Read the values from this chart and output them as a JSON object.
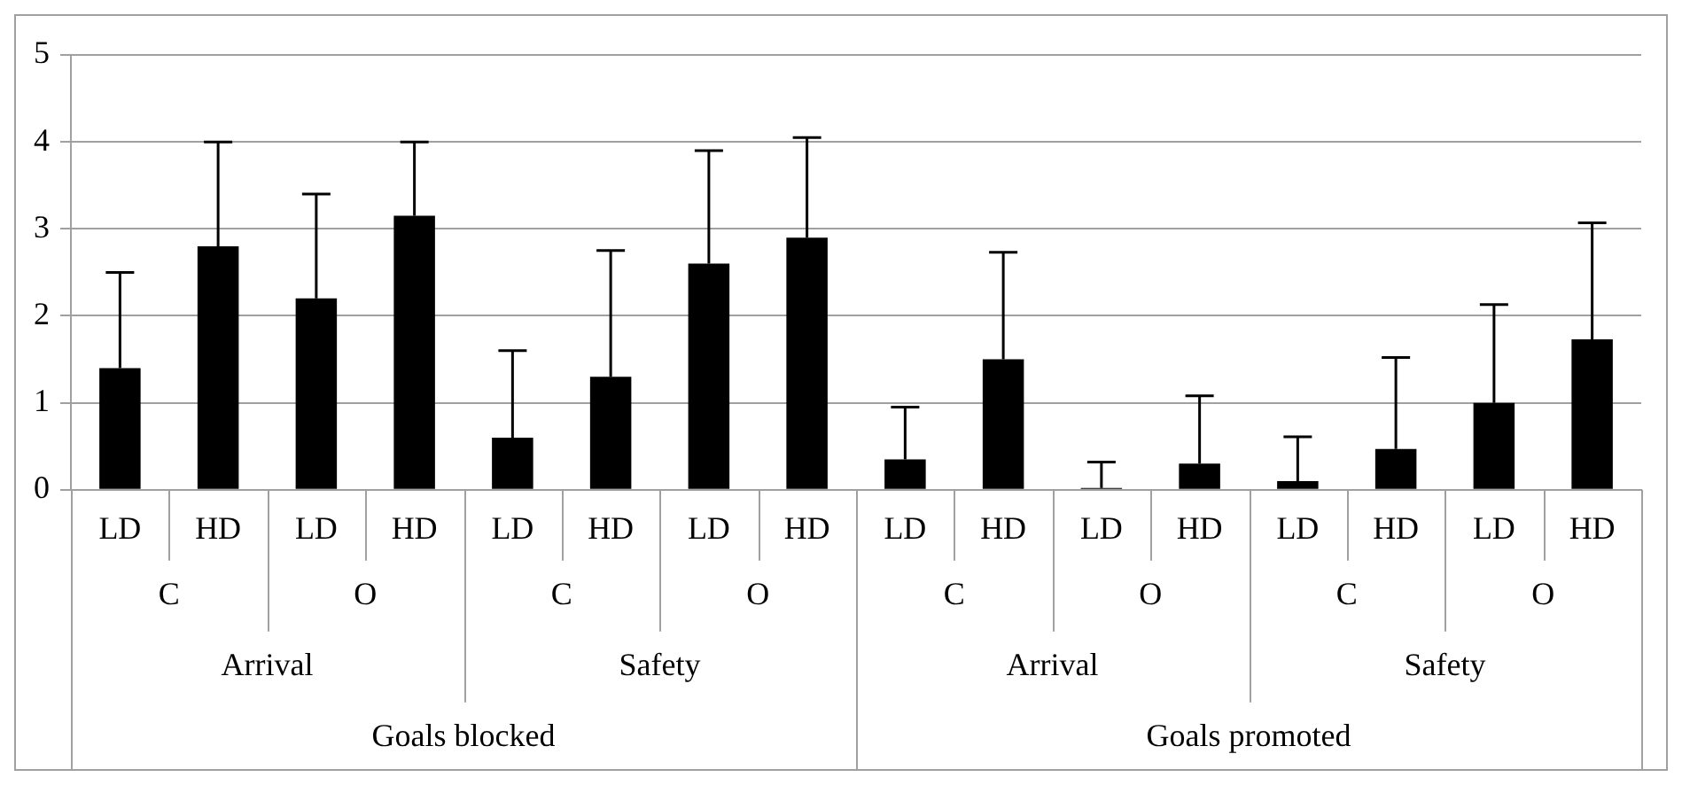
{
  "chart_data": {
    "type": "bar",
    "categories": [
      "LD",
      "HD",
      "LD",
      "HD",
      "LD",
      "HD",
      "LD",
      "HD",
      "LD",
      "HD",
      "LD",
      "HD",
      "LD",
      "HD",
      "LD",
      "HD"
    ],
    "values": [
      1.4,
      2.8,
      2.2,
      3.15,
      0.6,
      1.3,
      2.6,
      2.9,
      0.35,
      1.5,
      0.02,
      0.3,
      0.1,
      0.47,
      1.0,
      1.73
    ],
    "errors": [
      [
        1.4,
        2.5
      ],
      [
        2.8,
        4.0
      ],
      [
        2.2,
        3.4
      ],
      [
        3.15,
        4.0
      ],
      [
        0.6,
        1.6
      ],
      [
        1.3,
        2.75
      ],
      [
        2.6,
        3.9
      ],
      [
        2.9,
        4.05
      ],
      [
        0.35,
        0.95
      ],
      [
        1.5,
        2.73
      ],
      [
        0.02,
        0.32
      ],
      [
        0.3,
        1.08
      ],
      [
        0.1,
        0.61
      ],
      [
        0.47,
        1.52
      ],
      [
        1.0,
        2.13
      ],
      [
        1.73,
        3.07
      ]
    ],
    "color": "#000000",
    "ylim": [
      0,
      5
    ],
    "yticks": [
      0,
      1,
      2,
      3,
      4,
      5
    ],
    "grid": "y",
    "legend": false,
    "annotations": [
      "C",
      "O",
      "C",
      "O",
      "C",
      "O",
      "C",
      "O",
      "Arrival",
      "Safety",
      "Arrival",
      "Safety",
      "Goals blocked",
      "Goals promoted"
    ]
  }
}
